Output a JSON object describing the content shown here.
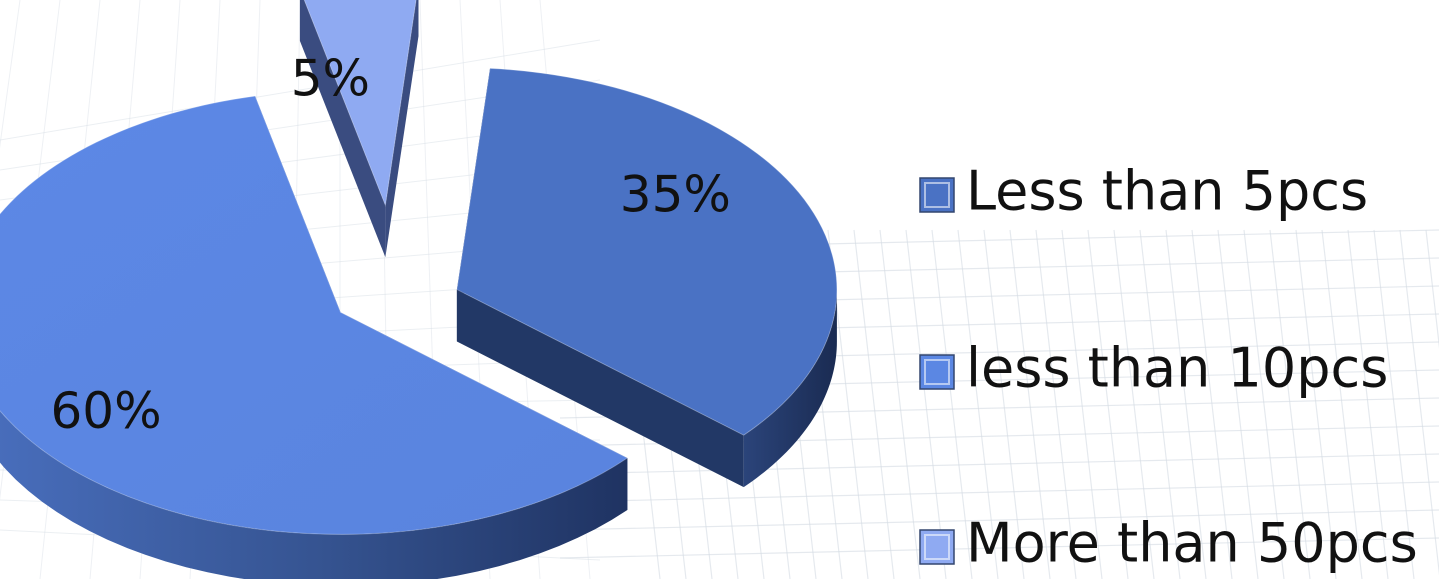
{
  "chart_data": {
    "type": "pie",
    "style": "3d-exploded",
    "categories": [
      "Less than 5pcs",
      "less than 10pcs",
      "More than 50pcs"
    ],
    "values": [
      35,
      60,
      5
    ],
    "labels": [
      "35%",
      "60%",
      "5%"
    ],
    "legend": {
      "placement": "right",
      "entries": [
        "Less than 5pcs",
        "less than 10pcs",
        "More than 50pcs"
      ]
    },
    "colors": {
      "slices_top": [
        "#4A72C4",
        "#5B87E3",
        "#8FAAF2"
      ],
      "slices_side": [
        "#223866",
        "#2F4A85",
        "#3A4C80"
      ],
      "legend_swatch": [
        "#4A72C4",
        "#5B87E3",
        "#8FAAF2"
      ],
      "background": "#FFFFFF",
      "grid": "#D5DCE4"
    }
  }
}
